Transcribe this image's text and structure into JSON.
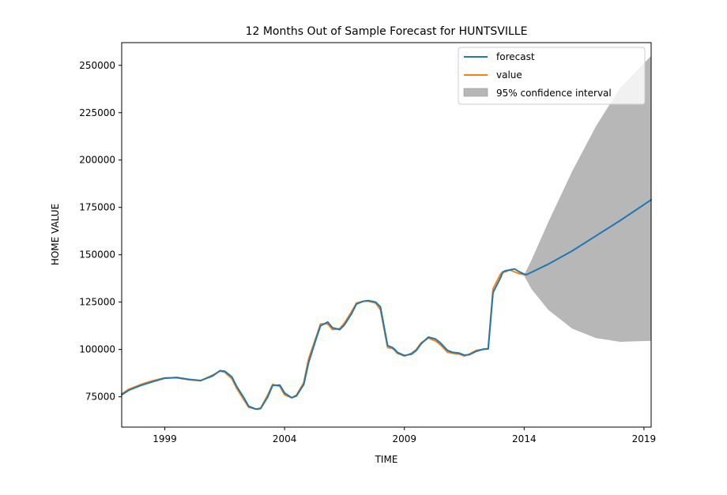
{
  "chart_data": {
    "type": "line",
    "title": "12 Months Out of Sample Forecast for HUNTSVILLE",
    "xlabel": "TIME",
    "ylabel": "HOME VALUE",
    "xlim": [
      1997.2,
      2019.3
    ],
    "ylim": [
      59000,
      262000
    ],
    "xticks": [
      1999,
      2004,
      2009,
      2014,
      2019
    ],
    "xtick_labels": [
      "1999",
      "2004",
      "2009",
      "2014",
      "2019"
    ],
    "yticks": [
      75000,
      100000,
      125000,
      150000,
      175000,
      200000,
      225000,
      250000
    ],
    "ytick_labels": [
      "75000",
      "100000",
      "125000",
      "150000",
      "175000",
      "200000",
      "225000",
      "250000"
    ],
    "grid": false,
    "legend_position": "top-right",
    "series": [
      {
        "name": "value",
        "color": "#ff7f0e",
        "x": [
          1997.2,
          1997.5,
          1998.0,
          1998.5,
          1999.0,
          1999.5,
          2000.0,
          2000.5,
          2001.0,
          2001.3,
          2001.5,
          2001.8,
          2002.0,
          2002.3,
          2002.5,
          2002.8,
          2003.0,
          2003.3,
          2003.5,
          2003.8,
          2004.0,
          2004.3,
          2004.5,
          2004.8,
          2005.0,
          2005.3,
          2005.5,
          2005.8,
          2006.0,
          2006.3,
          2006.5,
          2006.8,
          2007.0,
          2007.3,
          2007.5,
          2007.8,
          2008.0,
          2008.3,
          2008.5,
          2008.6,
          2008.7,
          2009.0,
          2009.3,
          2009.5,
          2009.7,
          2010.0,
          2010.3,
          2010.5,
          2010.8,
          2011.0,
          2011.3,
          2011.5,
          2011.7,
          2012.0,
          2012.3,
          2012.5,
          2012.7,
          2013.0,
          2013.1,
          2013.2,
          2013.4,
          2013.6,
          2013.8,
          2014.0,
          2014.1
        ],
        "y": [
          76500,
          79000,
          81500,
          83500,
          85000,
          85000,
          84000,
          83500,
          86500,
          88500,
          88000,
          84500,
          79500,
          73500,
          69500,
          68500,
          69000,
          76000,
          81500,
          80500,
          76000,
          74500,
          76000,
          82500,
          95000,
          106000,
          113500,
          113500,
          110500,
          111000,
          114000,
          120000,
          124500,
          125500,
          125500,
          124500,
          121000,
          101000,
          100500,
          99500,
          98000,
          96500,
          98000,
          100000,
          103500,
          106000,
          104500,
          102500,
          98500,
          98000,
          97500,
          96500,
          97500,
          99500,
          100000,
          100500,
          132000,
          139500,
          141000,
          141000,
          142000,
          141000,
          140000,
          139500,
          139500
        ]
      },
      {
        "name": "forecast",
        "color": "#1f77b4",
        "x": [
          1997.2,
          1997.5,
          1998.0,
          1998.5,
          1999.0,
          1999.5,
          2000.0,
          2000.5,
          2001.0,
          2001.3,
          2001.5,
          2001.8,
          2002.0,
          2002.3,
          2002.5,
          2002.8,
          2003.0,
          2003.3,
          2003.5,
          2003.8,
          2004.0,
          2004.3,
          2004.5,
          2004.8,
          2005.0,
          2005.3,
          2005.5,
          2005.8,
          2006.0,
          2006.3,
          2006.5,
          2006.8,
          2007.0,
          2007.3,
          2007.5,
          2007.8,
          2008.0,
          2008.3,
          2008.5,
          2008.6,
          2008.7,
          2009.0,
          2009.3,
          2009.5,
          2009.7,
          2010.0,
          2010.3,
          2010.5,
          2010.8,
          2011.0,
          2011.3,
          2011.5,
          2011.7,
          2012.0,
          2012.3,
          2012.5,
          2012.7,
          2013.0,
          2013.1,
          2013.2,
          2013.4,
          2013.6,
          2013.8,
          2014.0,
          2014.1,
          2015.0,
          2016.0,
          2017.0,
          2018.0,
          2019.3
        ],
        "y": [
          76000,
          78500,
          81000,
          83000,
          84800,
          85200,
          84200,
          83600,
          86000,
          88800,
          88500,
          85500,
          80500,
          74500,
          70000,
          68500,
          68800,
          75000,
          81000,
          81200,
          77000,
          74500,
          75500,
          81500,
          93000,
          105000,
          112500,
          114500,
          111500,
          110500,
          113000,
          119000,
          124000,
          125500,
          125800,
          125000,
          122500,
          102000,
          101000,
          100000,
          98500,
          96800,
          97500,
          99500,
          103000,
          106500,
          105500,
          103500,
          99500,
          98500,
          98000,
          97000,
          97200,
          99000,
          100200,
          100300,
          130000,
          137500,
          140500,
          141500,
          142000,
          142500,
          141000,
          139800,
          139500,
          145000,
          152000,
          160000,
          168000,
          179000
        ]
      }
    ],
    "confidence_interval": {
      "name": "95% confidence interval",
      "color": "#999999",
      "x": [
        2014.0,
        2014.3,
        2015.0,
        2016.0,
        2017.0,
        2018.0,
        2019.3
      ],
      "lower": [
        139000,
        132000,
        121000,
        111000,
        106000,
        104000,
        104500
      ],
      "upper": [
        139500,
        147000,
        167000,
        194000,
        218000,
        238000,
        255000
      ]
    }
  }
}
